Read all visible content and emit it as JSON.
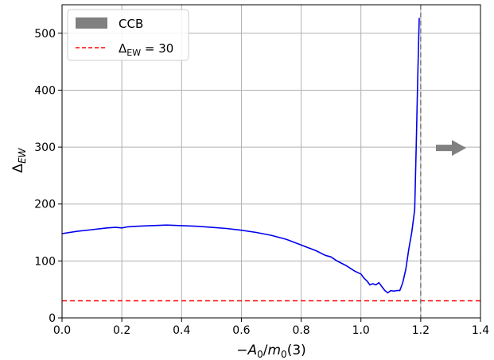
{
  "chart_data": {
    "type": "line",
    "xlabel": "−A₀/m₀(3)",
    "ylabel": "Δ_EW",
    "xlim": [
      0.0,
      1.4
    ],
    "ylim": [
      0,
      550
    ],
    "x_ticks": [
      "0.0",
      "0.2",
      "0.4",
      "0.6",
      "0.8",
      "1.0",
      "1.2",
      "1.4"
    ],
    "y_ticks": [
      "0",
      "100",
      "200",
      "300",
      "400",
      "500"
    ],
    "grid": true,
    "legend_position": "top-left",
    "series": [
      {
        "color": "#0000ee",
        "x": [
          0.0,
          0.05,
          0.1,
          0.15,
          0.18,
          0.2,
          0.22,
          0.25,
          0.3,
          0.35,
          0.4,
          0.45,
          0.5,
          0.55,
          0.6,
          0.65,
          0.7,
          0.75,
          0.8,
          0.85,
          0.88,
          0.9,
          0.92,
          0.95,
          0.98,
          1.0,
          1.01,
          1.02,
          1.03,
          1.04,
          1.05,
          1.06,
          1.07,
          1.08,
          1.09,
          1.1,
          1.11,
          1.12,
          1.13,
          1.14,
          1.15,
          1.16,
          1.17,
          1.18,
          1.185,
          1.19,
          1.195
        ],
        "values": [
          148,
          152,
          155,
          158,
          159,
          158,
          160,
          161,
          162,
          163,
          162,
          161,
          159,
          157,
          154,
          150,
          145,
          138,
          128,
          118,
          110,
          107,
          100,
          92,
          82,
          77,
          70,
          65,
          58,
          60,
          58,
          62,
          55,
          48,
          44,
          48,
          47,
          48,
          48,
          62,
          85,
          120,
          150,
          190,
          300,
          420,
          527
        ]
      }
    ],
    "ccb_line": {
      "x": 1.2,
      "color": "#808080",
      "style": "dashed"
    },
    "threshold_line": {
      "y": 30,
      "color": "#ff0000",
      "style": "dashed"
    },
    "legend": [
      {
        "label": "CCB",
        "color": "#808080",
        "marker": "patch"
      },
      {
        "label": "Δ_EW = 30",
        "color": "#ff0000",
        "marker": "dashed-line"
      }
    ],
    "arrow": {
      "color": "#808080",
      "direction": "right"
    }
  }
}
